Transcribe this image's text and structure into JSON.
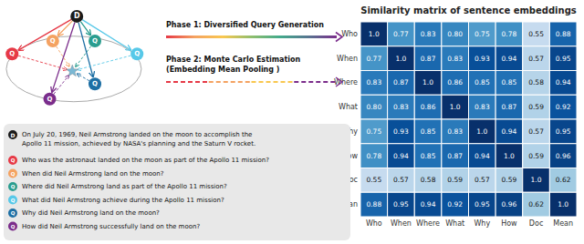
{
  "chart_data": {
    "type": "heatmap",
    "title": "Similarity matrix of sentence embeddings",
    "categories": [
      "Who",
      "When",
      "Where",
      "What",
      "Why",
      "How",
      "Doc",
      "Mean"
    ],
    "values": [
      [
        1.0,
        0.77,
        0.83,
        0.8,
        0.75,
        0.78,
        0.55,
        0.88
      ],
      [
        0.77,
        1.0,
        0.87,
        0.83,
        0.93,
        0.94,
        0.57,
        0.95
      ],
      [
        0.83,
        0.87,
        1.0,
        0.86,
        0.85,
        0.85,
        0.58,
        0.94
      ],
      [
        0.8,
        0.83,
        0.86,
        1.0,
        0.83,
        0.87,
        0.59,
        0.92
      ],
      [
        0.75,
        0.93,
        0.85,
        0.83,
        1.0,
        0.94,
        0.57,
        0.95
      ],
      [
        0.78,
        0.94,
        0.85,
        0.87,
        0.94,
        1.0,
        0.59,
        0.96
      ],
      [
        0.55,
        0.57,
        0.58,
        0.59,
        0.57,
        0.59,
        1.0,
        0.62
      ],
      [
        0.88,
        0.95,
        0.94,
        0.92,
        0.95,
        0.96,
        0.62,
        1.0
      ]
    ],
    "value_labels": [
      [
        "1.0",
        "0.77",
        "0.83",
        "0.80",
        "0.75",
        "0.78",
        "0.55",
        "0.88"
      ],
      [
        "0.77",
        "1.0",
        "0.87",
        "0.83",
        "0.93",
        "0.94",
        "0.57",
        "0.95"
      ],
      [
        "0.83",
        "0.87",
        "1.0",
        "0.86",
        "0.85",
        "0.85",
        "0.58",
        "0.94"
      ],
      [
        "0.80",
        "0.83",
        "0.86",
        "1.0",
        "0.83",
        "0.87",
        "0.59",
        "0.92"
      ],
      [
        "0.75",
        "0.93",
        "0.85",
        "0.83",
        "1.0",
        "0.94",
        "0.57",
        "0.95"
      ],
      [
        "0.78",
        "0.94",
        "0.85",
        "0.87",
        "0.94",
        "1.0",
        "0.59",
        "0.96"
      ],
      [
        "0.55",
        "0.57",
        "0.58",
        "0.59",
        "0.57",
        "0.59",
        "1.0",
        "0.62"
      ],
      [
        "0.88",
        "0.95",
        "0.94",
        "0.92",
        "0.95",
        "0.96",
        "0.62",
        "1.0"
      ]
    ],
    "color_range": [
      0.4,
      1.0
    ],
    "color": "Blues",
    "annotations": [
      {
        "text": "Phase 1: Diversified Query Generation"
      },
      {
        "text": "Phase 2: Monte Carlo Estimation\n(Embedding Mean Pooling )"
      },
      {
        "text": "On July 20, 1969, Neil Armstrong landed on the moon to accomplish the\nApollo 11 mission, achieved by NASA's planning and the Saturn V rocket.",
        "label": "D",
        "color": "#1a1a1a"
      },
      {
        "text": "Who was the astronaut landed on the moon as part of the Apollo 11 mission?",
        "label": "Q",
        "color": "#e63946"
      },
      {
        "text": "When did Neil Armstrong land on the moon?",
        "label": "Q",
        "color": "#f4a261"
      },
      {
        "text": "Where did Neil Armstrong land as part of the Apollo 11 mission?",
        "label": "Q",
        "color": "#2a9d8f"
      },
      {
        "text": "What did Neil Armstrong achieve during the Apollo 11 mission?",
        "label": "Q",
        "color": "#57c8e8"
      },
      {
        "text": "Why did Neil Armstrong land on the moon?",
        "label": "Q",
        "color": "#1d6fa4"
      },
      {
        "text": "How did Neil Armstrong successfully land on the moon?",
        "label": "Q",
        "color": "#7b2d8b"
      }
    ]
  }
}
